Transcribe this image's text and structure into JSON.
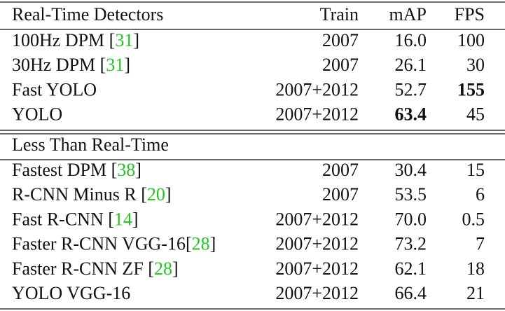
{
  "table": {
    "header": [
      "Real-Time Detectors",
      "Train",
      "mAP",
      "FPS"
    ],
    "sections": [
      {
        "rows": [
          {
            "label": [
              {
                "text": "100Hz DPM ["
              },
              {
                "text": "31",
                "link": true
              },
              {
                "text": "]"
              }
            ],
            "train": "2007",
            "map": "16.0",
            "fps": "100"
          },
          {
            "label": [
              {
                "text": "30Hz DPM ["
              },
              {
                "text": "31",
                "link": true
              },
              {
                "text": "]"
              }
            ],
            "train": "2007",
            "map": "26.1",
            "fps": "30"
          },
          {
            "label": [
              {
                "text": "Fast YOLO"
              }
            ],
            "train": "2007+2012",
            "map": "52.7",
            "fps": "155",
            "bold": "fps"
          },
          {
            "label": [
              {
                "text": "YOLO"
              }
            ],
            "train": "2007+2012",
            "map": "63.4",
            "fps": "45",
            "bold": "map"
          }
        ]
      },
      {
        "title": "Less Than Real-Time",
        "rows": [
          {
            "label": [
              {
                "text": "Fastest DPM ["
              },
              {
                "text": "38",
                "link": true
              },
              {
                "text": "]"
              }
            ],
            "train": "2007",
            "map": "30.4",
            "fps": "15"
          },
          {
            "label": [
              {
                "text": "R-CNN Minus R ["
              },
              {
                "text": "20",
                "link": true
              },
              {
                "text": "]"
              }
            ],
            "train": "2007",
            "map": "53.5",
            "fps": "6"
          },
          {
            "label": [
              {
                "text": "Fast R-CNN ["
              },
              {
                "text": "14",
                "link": true
              },
              {
                "text": "]"
              }
            ],
            "train": "2007+2012",
            "map": "70.0",
            "fps": "0.5"
          },
          {
            "label": [
              {
                "text": "Faster R-CNN VGG-16["
              },
              {
                "text": "28",
                "link": true
              },
              {
                "text": "]"
              }
            ],
            "train": "2007+2012",
            "map": "73.2",
            "fps": "7"
          },
          {
            "label": [
              {
                "text": "Faster R-CNN ZF ["
              },
              {
                "text": "28",
                "link": true
              },
              {
                "text": "]"
              }
            ],
            "train": "2007+2012",
            "map": "62.1",
            "fps": "18"
          },
          {
            "label": [
              {
                "text": "YOLO VGG-16"
              }
            ],
            "train": "2007+2012",
            "map": "66.4",
            "fps": "21"
          }
        ]
      }
    ]
  }
}
